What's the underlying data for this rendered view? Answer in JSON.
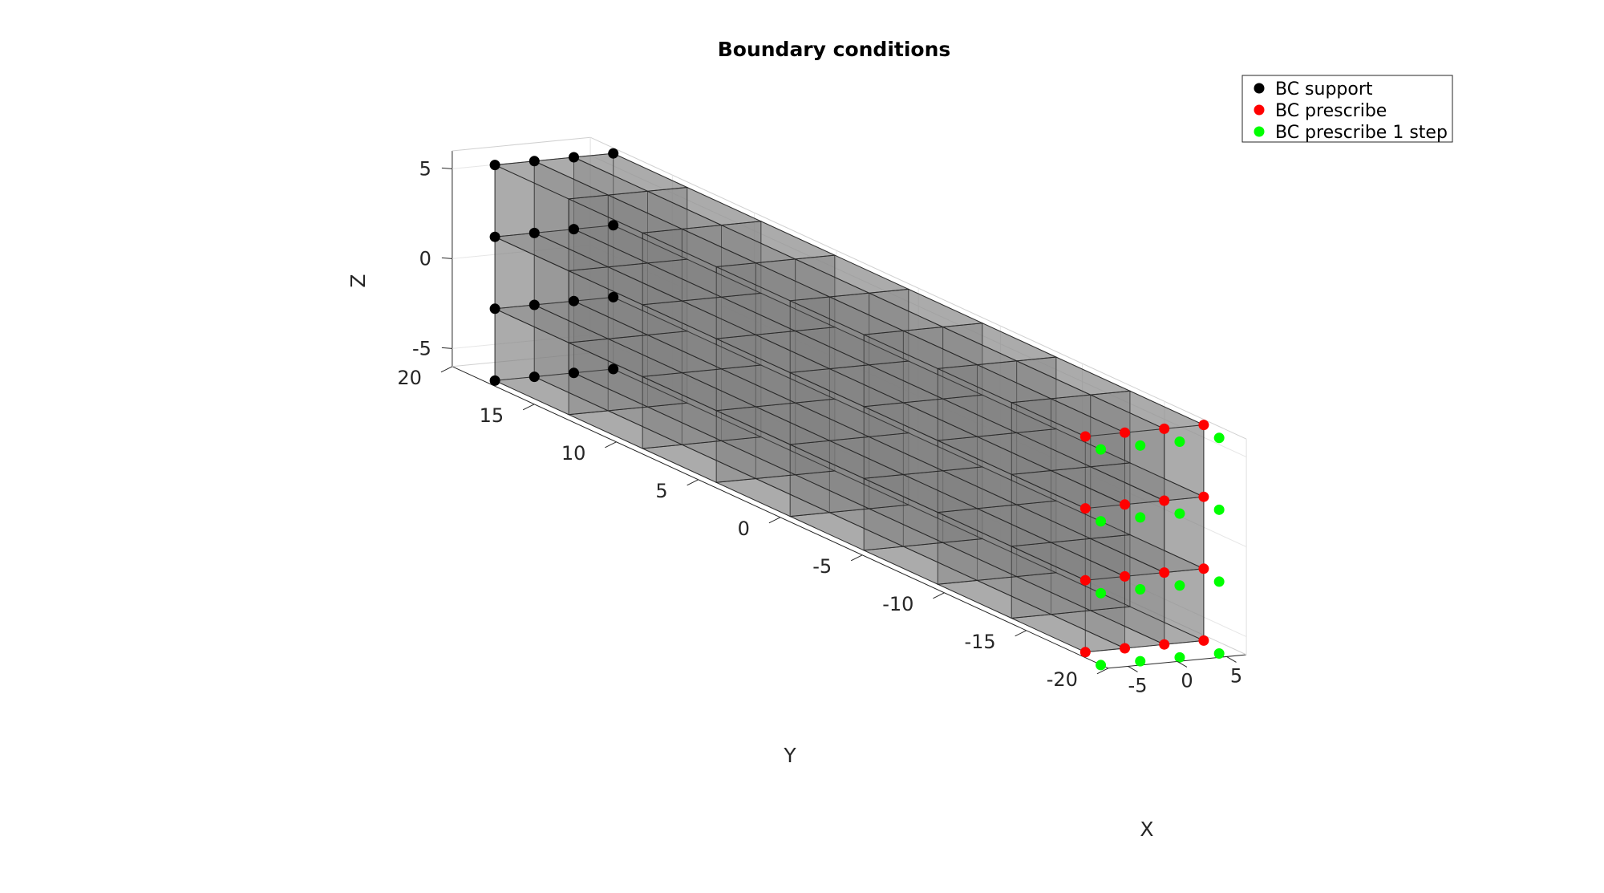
{
  "chart_data": {
    "type": "scatter",
    "subtype": "3d-mesh-with-markers",
    "title": "Boundary conditions",
    "xlabel": "X",
    "ylabel": "Y",
    "zlabel": "Z",
    "xlim": [
      -7,
      7
    ],
    "ylim": [
      -20,
      20
    ],
    "zlim": [
      -6,
      6
    ],
    "xticks": [
      "-5",
      "0",
      "5"
    ],
    "yticks": [
      "20",
      "15",
      "10",
      "5",
      "0",
      "-5",
      "-10",
      "-15",
      "-20"
    ],
    "zticks": [
      "5",
      "0",
      "-5"
    ],
    "grid": true,
    "legend_position": "top-right",
    "mesh": {
      "x_range": [
        -6,
        6
      ],
      "y_range": [
        -18,
        18
      ],
      "z_range": [
        -6,
        6
      ],
      "divisions": [
        3,
        8,
        3
      ],
      "face_color": "#808080",
      "edge_color": "#222222"
    },
    "series": [
      {
        "name": "BC support",
        "color": "#000000",
        "description_face": "y = 18 (all face nodes)"
      },
      {
        "name": "BC prescribe",
        "color": "#ff0000",
        "description_face": "y = -18 (all face nodes)"
      },
      {
        "name": "BC prescribe 1 step",
        "color": "#00ff00",
        "description_face": "y = -18 (offset nodes)"
      }
    ]
  }
}
